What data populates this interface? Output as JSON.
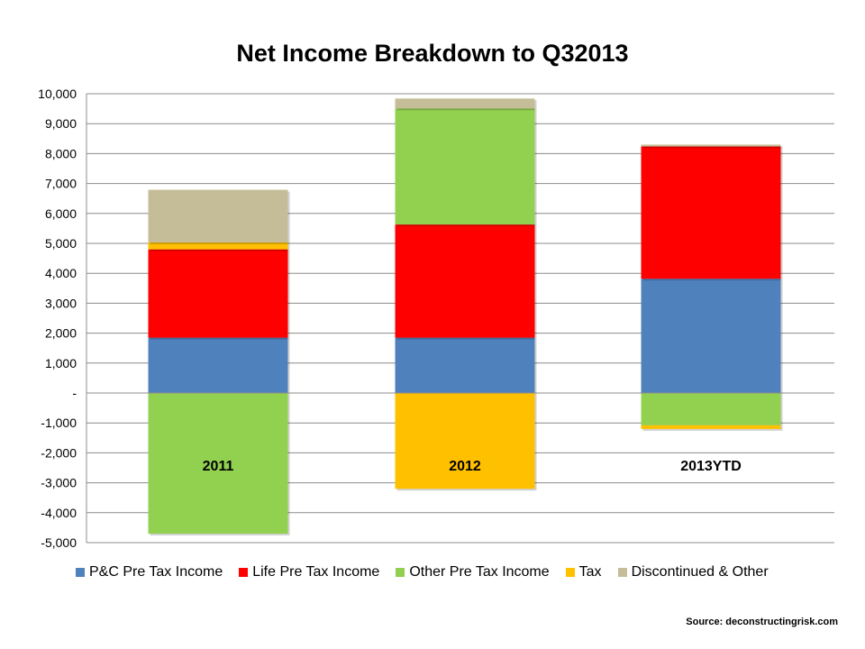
{
  "chart_data": {
    "type": "bar",
    "stacked": true,
    "title": "Net Income Breakdown to Q32013",
    "categories": [
      "2011",
      "2012",
      "2013YTD"
    ],
    "ylim": [
      -5000,
      10000
    ],
    "yticks": [
      {
        "value": 10000,
        "label": "10,000"
      },
      {
        "value": 9000,
        "label": "9,000"
      },
      {
        "value": 8000,
        "label": "8,000"
      },
      {
        "value": 7000,
        "label": "7,000"
      },
      {
        "value": 6000,
        "label": "6,000"
      },
      {
        "value": 5000,
        "label": "5,000"
      },
      {
        "value": 4000,
        "label": "4,000"
      },
      {
        "value": 3000,
        "label": "3,000"
      },
      {
        "value": 2000,
        "label": "2,000"
      },
      {
        "value": 1000,
        "label": "1,000"
      },
      {
        "value": 0,
        "label": "-"
      },
      {
        "value": -1000,
        "label": "-1,000"
      },
      {
        "value": -2000,
        "label": "-2,000"
      },
      {
        "value": -3000,
        "label": "-3,000"
      },
      {
        "value": -4000,
        "label": "-4,000"
      },
      {
        "value": -5000,
        "label": "-5,000"
      }
    ],
    "grid": true,
    "legend_position": "bottom",
    "series": [
      {
        "name": "P&C Pre Tax Income",
        "color": "#4F81BD",
        "values": [
          1850,
          1850,
          3820
        ]
      },
      {
        "name": "Life Pre Tax Income",
        "color": "#FF0000",
        "values": [
          2950,
          3780,
          4420
        ]
      },
      {
        "name": "Other Pre Tax Income",
        "color": "#92D050",
        "values": [
          -4700,
          3880,
          -1080
        ]
      },
      {
        "name": "Tax",
        "color": "#FFC000",
        "values": [
          230,
          -3200,
          -120
        ]
      },
      {
        "name": "Discontinued & Other",
        "color": "#C4BD97",
        "values": [
          1760,
          330,
          60
        ]
      }
    ]
  },
  "source": "Source: deconstructingrisk.com"
}
